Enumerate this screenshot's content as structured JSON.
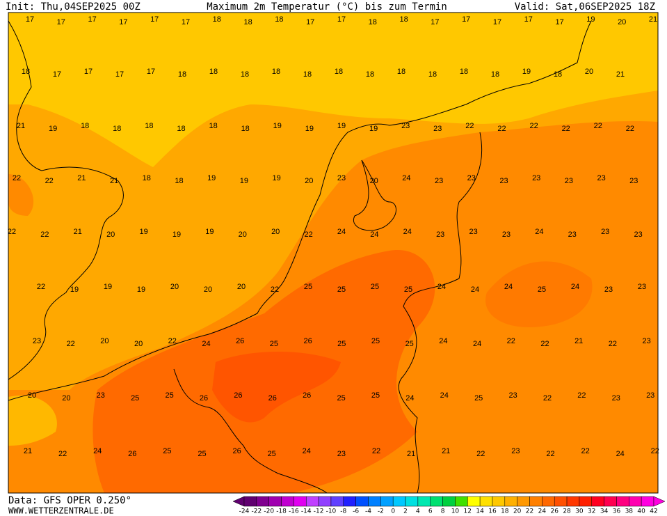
{
  "header": {
    "init": "Init: Thu,04SEP2025 00Z",
    "title": "Maximum 2m Temperatur (°C) bis zum Termin",
    "valid": "Valid: Sat,06SEP2025 18Z"
  },
  "footer": {
    "data_source": "Data: GFS OPER 0.250°",
    "website": "WWW.WETTERZENTRALE.DE"
  },
  "map": {
    "temperature_rows": [
      [
        17,
        17,
        17,
        17,
        17,
        17,
        18,
        18,
        18,
        17,
        17,
        18,
        18,
        17,
        17,
        17,
        17,
        17,
        19,
        20,
        21
      ],
      [
        18,
        17,
        17,
        17,
        17,
        18,
        18,
        18,
        18,
        18,
        18,
        18,
        18,
        18,
        18,
        18,
        19,
        18,
        20,
        21
      ],
      [
        21,
        19,
        18,
        18,
        18,
        18,
        18,
        18,
        19,
        19,
        19,
        19,
        23,
        23,
        22,
        22,
        22,
        22,
        22,
        22
      ],
      [
        22,
        22,
        21,
        21,
        18,
        18,
        19,
        19,
        19,
        20,
        23,
        20,
        24,
        23,
        23,
        23,
        23,
        23,
        23,
        23
      ],
      [
        22,
        22,
        21,
        20,
        19,
        19,
        19,
        20,
        20,
        22,
        24,
        24,
        24,
        23,
        23,
        23,
        24,
        23,
        23,
        23
      ],
      [
        22,
        19,
        19,
        19,
        20,
        20,
        20,
        22,
        25,
        25,
        25,
        25,
        24,
        24,
        24,
        25,
        24,
        23,
        23
      ],
      [
        23,
        22,
        20,
        20,
        22,
        24,
        26,
        25,
        26,
        25,
        25,
        25,
        24,
        24,
        22,
        22,
        21,
        22,
        23
      ],
      [
        20,
        20,
        23,
        25,
        25,
        26,
        26,
        26,
        26,
        25,
        25,
        24,
        24,
        25,
        23,
        22,
        22,
        23,
        23
      ],
      [
        21,
        22,
        24,
        26,
        25,
        25,
        26,
        25,
        24,
        23,
        22,
        21,
        21,
        22,
        23,
        22,
        22,
        24,
        22
      ]
    ]
  },
  "colorbar": {
    "ticks": [
      -24,
      -22,
      -20,
      -18,
      -16,
      -14,
      -12,
      -10,
      -8,
      -6,
      -4,
      -2,
      0,
      2,
      4,
      6,
      8,
      10,
      12,
      14,
      16,
      18,
      20,
      22,
      24,
      26,
      28,
      30,
      32,
      34,
      36,
      38,
      40,
      42
    ],
    "colors": [
      "#600070",
      "#800090",
      "#a000b0",
      "#c000d0",
      "#e000f0",
      "#c040ff",
      "#9040ff",
      "#6040ff",
      "#2020ff",
      "#0050ff",
      "#0080ff",
      "#00a0ff",
      "#00c8ff",
      "#00e0e0",
      "#00e8b0",
      "#00e070",
      "#00d040",
      "#40e000",
      "#ffff00",
      "#ffe000",
      "#ffc800",
      "#ffb000",
      "#ff9800",
      "#ff8000",
      "#ff6800",
      "#ff5000",
      "#ff3800",
      "#ff2000",
      "#ff0020",
      "#ff0050",
      "#ff0080",
      "#ff00b0",
      "#ff00e0"
    ]
  }
}
